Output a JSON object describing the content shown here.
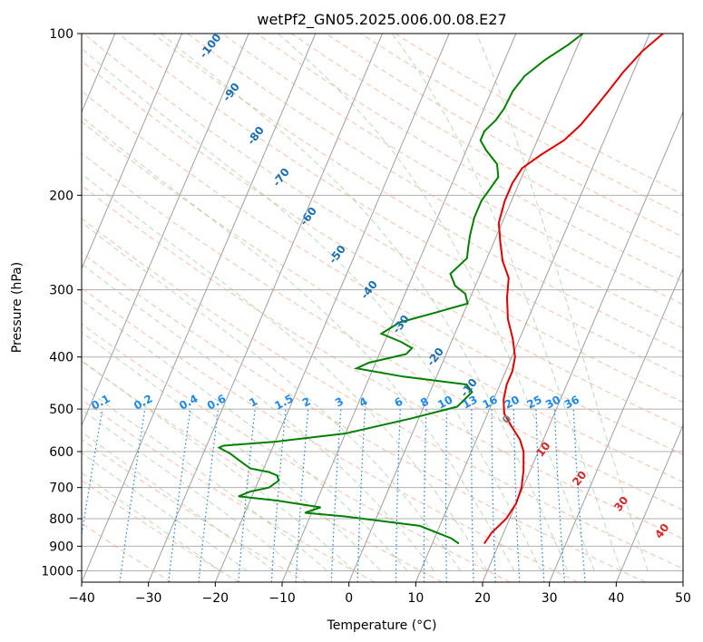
{
  "chart_data": {
    "type": "line",
    "title": "wetPf2_GN05.2025.006.00.08.E27",
    "xlabel": "Temperature (°C)",
    "ylabel": "Pressure (hPa)",
    "xlim": [
      -40,
      50
    ],
    "ylim": [
      1050,
      100
    ],
    "y_scale": "log",
    "x_ticks": [
      -40,
      -30,
      -20,
      -10,
      0,
      10,
      20,
      30,
      40,
      50
    ],
    "y_ticks": [
      100,
      200,
      300,
      400,
      500,
      600,
      700,
      800,
      900,
      1000
    ],
    "grid": true,
    "series": [
      {
        "color": "#e00000",
        "points": [
          [
            17.8,
            890
          ],
          [
            18.2,
            850
          ],
          [
            19.5,
            800
          ],
          [
            20,
            750
          ],
          [
            19.8,
            700
          ],
          [
            19,
            650
          ],
          [
            17.8,
            600
          ],
          [
            16.5,
            570
          ],
          [
            14.5,
            540
          ],
          [
            12.5,
            510
          ],
          [
            11.5,
            480
          ],
          [
            11,
            450
          ],
          [
            11,
            425
          ],
          [
            10.5,
            400
          ],
          [
            9,
            370
          ],
          [
            7,
            340
          ],
          [
            5.5,
            310
          ],
          [
            4.5,
            285
          ],
          [
            2.5,
            265
          ],
          [
            1,
            245
          ],
          [
            -0.5,
            225
          ],
          [
            -1,
            205
          ],
          [
            -1,
            190
          ],
          [
            -0.5,
            178
          ],
          [
            1.5,
            168
          ],
          [
            4,
            158
          ],
          [
            5.5,
            148
          ],
          [
            6.5,
            138
          ],
          [
            7.5,
            128
          ],
          [
            8.5,
            118
          ],
          [
            10,
            108
          ],
          [
            12,
            100
          ]
        ]
      },
      {
        "color": "#008000",
        "points": [
          [
            14,
            890
          ],
          [
            12.5,
            870
          ],
          [
            7,
            825
          ],
          [
            -5,
            792
          ],
          [
            -11,
            780
          ],
          [
            -9,
            762
          ],
          [
            -16,
            740
          ],
          [
            -22,
            727
          ],
          [
            -20.5,
            712
          ],
          [
            -18,
            700
          ],
          [
            -17,
            680
          ],
          [
            -17.5,
            665
          ],
          [
            -19,
            655
          ],
          [
            -22,
            645
          ],
          [
            -23.5,
            630
          ],
          [
            -26,
            605
          ],
          [
            -28,
            590
          ],
          [
            -27.5,
            585
          ],
          [
            -20,
            575
          ],
          [
            -10,
            555
          ],
          [
            -1,
            520
          ],
          [
            5,
            495
          ],
          [
            6.3,
            465
          ],
          [
            5,
            450
          ],
          [
            -5,
            435
          ],
          [
            -12.5,
            420
          ],
          [
            -11,
            410
          ],
          [
            -6,
            395
          ],
          [
            -5.5,
            385
          ],
          [
            -7.5,
            375
          ],
          [
            -11,
            362
          ],
          [
            -9,
            345
          ],
          [
            -4,
            330
          ],
          [
            0,
            318
          ],
          [
            -1,
            305
          ],
          [
            -3,
            295
          ],
          [
            -4.5,
            280
          ],
          [
            -3,
            262
          ],
          [
            -3.5,
            250
          ],
          [
            -4,
            238
          ],
          [
            -4.5,
            220
          ],
          [
            -4.5,
            205
          ],
          [
            -3.5,
            185
          ],
          [
            -4.5,
            175
          ],
          [
            -7,
            165
          ],
          [
            -8.5,
            158
          ],
          [
            -8.5,
            152
          ],
          [
            -7.5,
            145
          ],
          [
            -7,
            138
          ],
          [
            -6.8,
            128
          ],
          [
            -6,
            120
          ],
          [
            -4,
            112
          ],
          [
            -1.5,
            105
          ],
          [
            0,
            100
          ]
        ]
      }
    ],
    "dry_adiabat_labels": [
      "-100",
      "-90",
      "-80",
      "-70",
      "-60",
      "-50",
      "-40",
      "-30",
      "-20",
      "-10",
      "0",
      "10",
      "20",
      "30",
      "40"
    ],
    "mixing_ratio_labels": [
      "0.1",
      "0.2",
      "0.4",
      "0.6",
      "1",
      "1.5",
      "2",
      "3",
      "4",
      "6",
      "8",
      "10",
      "13",
      "16",
      "20",
      "25",
      "30",
      "36"
    ]
  }
}
